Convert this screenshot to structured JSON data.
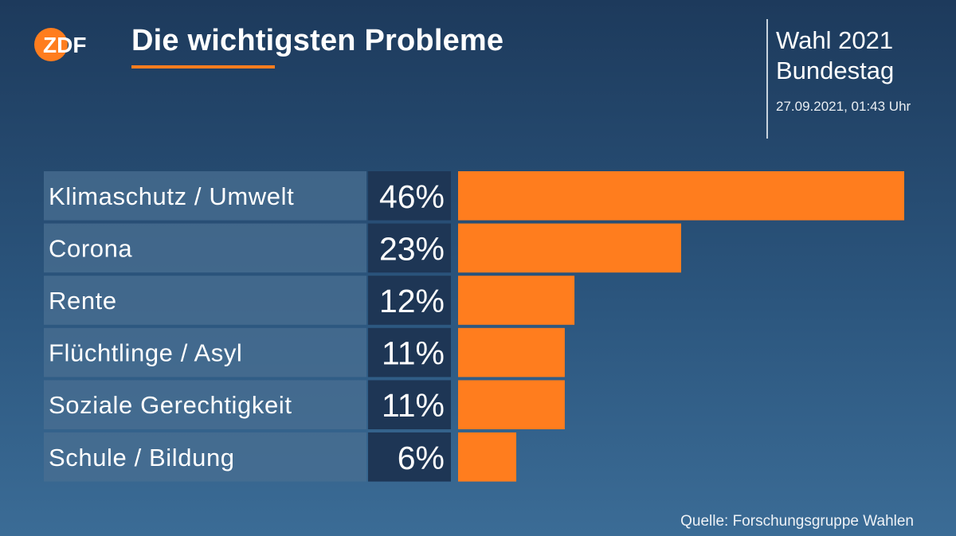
{
  "brand": {
    "logo_text": "ZDF",
    "accent_color": "#ff7d1e"
  },
  "header": {
    "title": "Die wichtigsten Probleme",
    "election_line1": "Wahl 2021",
    "election_line2": "Bundestag",
    "timestamp": "27.09.2021, 01:43 Uhr"
  },
  "footer": {
    "source": "Quelle: Forschungsgruppe Wahlen"
  },
  "chart_data": {
    "type": "bar",
    "orientation": "horizontal",
    "title": "Die wichtigsten Probleme",
    "categories": [
      "Klimaschutz / Umwelt",
      "Corona",
      "Rente",
      "Flüchtlinge / Asyl",
      "Soziale Gerechtigkeit",
      "Schule / Bildung"
    ],
    "values": [
      46,
      23,
      12,
      11,
      11,
      6
    ],
    "value_labels": [
      "46%",
      "23%",
      "12%",
      "11%",
      "11%",
      "6%"
    ],
    "unit": "%",
    "xlim": [
      0,
      46
    ],
    "bar_color": "#ff7d1e"
  }
}
